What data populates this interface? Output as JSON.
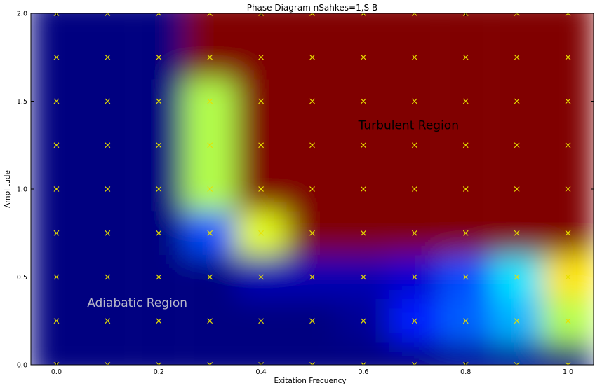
{
  "chart_data": {
    "type": "heatmap",
    "title": "Phase Diagram nSahkes=1,S-B",
    "xlabel": "Exitation Frecuency",
    "ylabel": "Amplitude",
    "xlim": [
      -0.05,
      1.05
    ],
    "ylim": [
      0.0,
      2.0
    ],
    "x_ticks": [
      0.0,
      0.2,
      0.4,
      0.6,
      0.8,
      1.0
    ],
    "x_tick_labels": [
      "0.0",
      "0.2",
      "0.4",
      "0.6",
      "0.8",
      "1.0"
    ],
    "y_ticks": [
      0.0,
      0.5,
      1.0,
      1.5,
      2.0
    ],
    "y_tick_labels": [
      "0.0",
      "0.5",
      "1.0",
      "1.5",
      "2.0"
    ],
    "grid": false,
    "colormap": "jet",
    "colors": {
      "low": "#00007f",
      "high": "#7f0000",
      "marker": "#e8e000",
      "region_text_light": "#b8b8c8",
      "region_text_dark": "#000000"
    },
    "x": [
      0.0,
      0.1,
      0.2,
      0.3,
      0.4,
      0.5,
      0.6,
      0.7,
      0.8,
      0.9,
      1.0
    ],
    "y": [
      0.0,
      0.25,
      0.5,
      0.75,
      1.0,
      1.25,
      1.5,
      1.75,
      2.0
    ],
    "z": [
      [
        0.0,
        0.0,
        0.0,
        0.0,
        0.0,
        0.0,
        0.0,
        0.0,
        0.02,
        0.02,
        0.0
      ],
      [
        0.0,
        0.0,
        0.0,
        0.0,
        0.0,
        0.0,
        0.02,
        0.15,
        0.22,
        0.3,
        0.55
      ],
      [
        0.0,
        0.0,
        0.0,
        0.0,
        0.05,
        0.05,
        0.05,
        0.08,
        0.2,
        0.35,
        0.65
      ],
      [
        0.0,
        0.0,
        0.0,
        0.2,
        0.6,
        1.0,
        1.0,
        1.0,
        1.0,
        1.0,
        1.0
      ],
      [
        0.0,
        0.0,
        0.0,
        0.55,
        1.0,
        1.0,
        1.0,
        1.0,
        1.0,
        1.0,
        1.0
      ],
      [
        0.0,
        0.0,
        0.0,
        0.55,
        1.0,
        1.0,
        1.0,
        1.0,
        1.0,
        1.0,
        1.0
      ],
      [
        0.0,
        0.0,
        0.0,
        0.55,
        1.0,
        1.0,
        1.0,
        1.0,
        1.0,
        1.0,
        1.0
      ],
      [
        0.0,
        0.0,
        0.0,
        1.0,
        1.0,
        1.0,
        1.0,
        1.0,
        1.0,
        1.0,
        1.0
      ],
      [
        0.0,
        0.0,
        0.0,
        1.0,
        1.0,
        1.0,
        1.0,
        1.0,
        1.0,
        1.0,
        1.0
      ]
    ],
    "markers": {
      "symbol": "x",
      "note": "yellow x marker at every grid point"
    },
    "annotations": [
      {
        "text": "Adiabatic Region",
        "x": 0.06,
        "y": 0.33,
        "color": "#b8b8c8"
      },
      {
        "text": "Turbulent Region",
        "x": 0.59,
        "y": 1.34,
        "color": "#000000"
      }
    ]
  }
}
